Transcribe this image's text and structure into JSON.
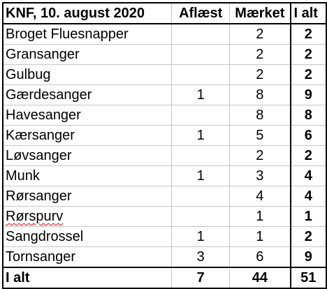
{
  "header": {
    "title": "KNF, 10. august 2020",
    "col_read": "Aflæst",
    "col_marked": "Mærket",
    "col_total": "I alt"
  },
  "rows": [
    {
      "name": "Broget Fluesnapper",
      "read": "",
      "marked": "2",
      "total": "2"
    },
    {
      "name": "Gransanger",
      "read": "",
      "marked": "2",
      "total": "2"
    },
    {
      "name": "Gulbug",
      "read": "",
      "marked": "2",
      "total": "2"
    },
    {
      "name": "Gærdesanger",
      "read": "1",
      "marked": "8",
      "total": "9"
    },
    {
      "name": "Havesanger",
      "read": "",
      "marked": "8",
      "total": "8"
    },
    {
      "name": "Kærsanger",
      "read": "1",
      "marked": "5",
      "total": "6"
    },
    {
      "name": "Løvsanger",
      "read": "",
      "marked": "2",
      "total": "2"
    },
    {
      "name": "Munk",
      "read": "1",
      "marked": "3",
      "total": "4"
    },
    {
      "name": "Rørsanger",
      "read": "",
      "marked": "4",
      "total": "4"
    },
    {
      "name": "Rørspurv",
      "read": "",
      "marked": "1",
      "total": "1"
    },
    {
      "name": "Sangdrossel",
      "read": "1",
      "marked": "1",
      "total": "2"
    },
    {
      "name": "Tornsanger",
      "read": "3",
      "marked": "6",
      "total": "9"
    }
  ],
  "totals": {
    "label": "I alt",
    "read": "7",
    "marked": "44",
    "total": "51"
  },
  "colors": {
    "grid": "#c6c6c6",
    "border": "#000000",
    "spellcheck": "#e00000"
  }
}
